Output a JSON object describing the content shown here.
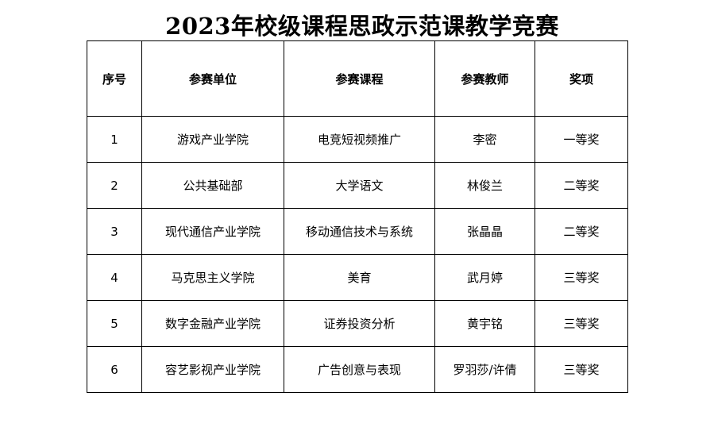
{
  "title": "2023年校级课程思政示范课教学竞赛",
  "table": {
    "headers": [
      "序号",
      "参赛单位",
      "参赛课程",
      "参赛教师",
      "奖项"
    ],
    "rows": [
      [
        "1",
        "游戏产业学院",
        "电竞短视频推广",
        "李密",
        "一等奖"
      ],
      [
        "2",
        "公共基础部",
        "大学语文",
        "林俊兰",
        "二等奖"
      ],
      [
        "3",
        "现代通信产业学院",
        "移动通信技术与系统",
        "张晶晶",
        "二等奖"
      ],
      [
        "4",
        "马克思主义学院",
        "美育",
        "武月婷",
        "三等奖"
      ],
      [
        "5",
        "数字金融产业学院",
        "证券投资分析",
        "黄宇铭",
        "三等奖"
      ],
      [
        "6",
        "容艺影视产业学院",
        "广告创意与表现",
        "罗羽莎/许倩",
        "三等奖"
      ]
    ]
  }
}
